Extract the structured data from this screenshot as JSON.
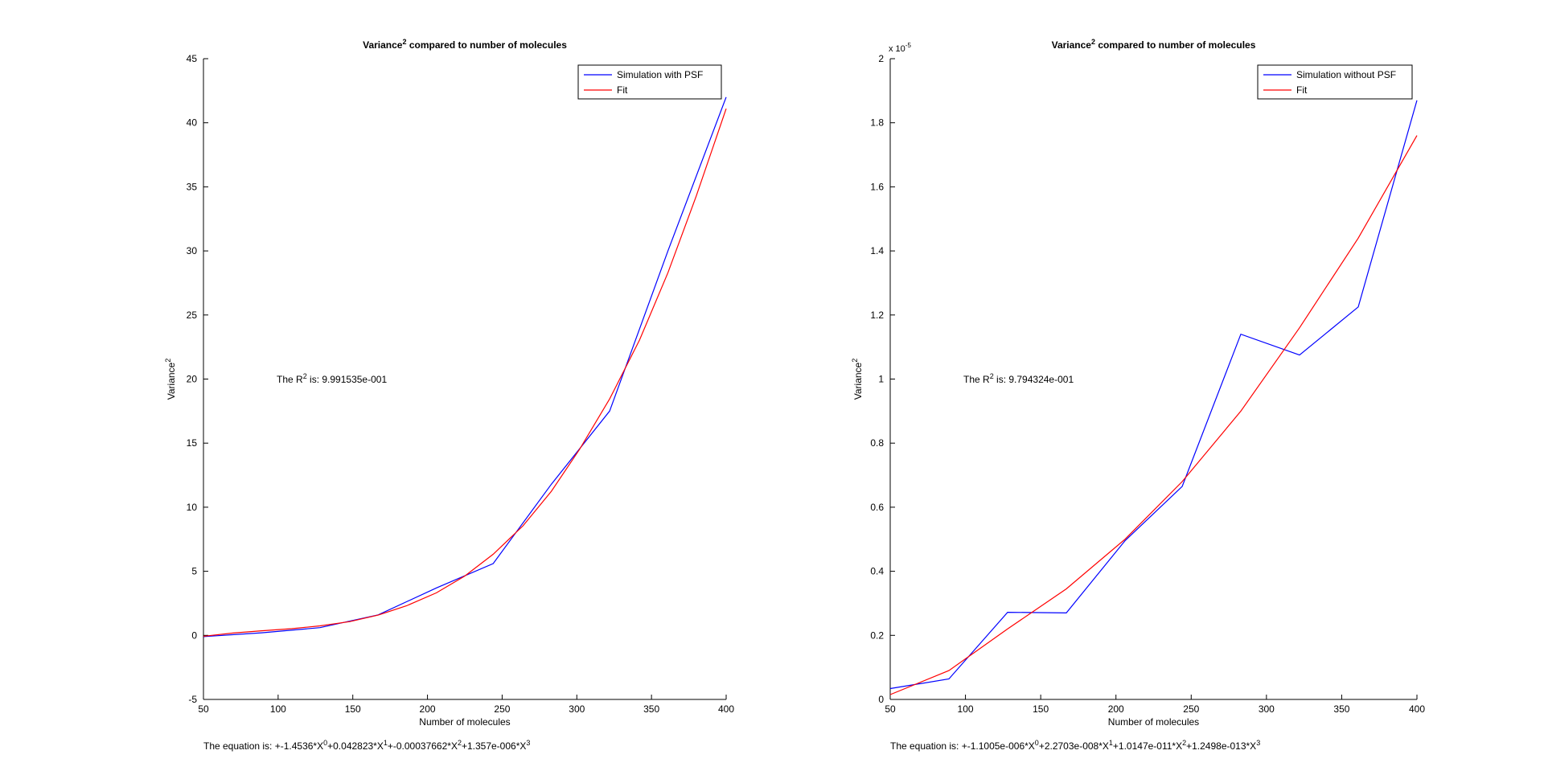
{
  "chart_data": [
    {
      "type": "line",
      "title": "Variance",
      "title_sup": "2",
      "title_rest": " compared to number of molecules",
      "xlabel": "Number of molecules",
      "ylabel": "Variance",
      "ylabel_sup": "2",
      "xlim": [
        50,
        400
      ],
      "ylim": [
        -5,
        45
      ],
      "xticks": [
        50,
        100,
        150,
        200,
        250,
        300,
        350,
        400
      ],
      "yticks": [
        -5,
        0,
        5,
        10,
        15,
        20,
        25,
        30,
        35,
        40,
        45
      ],
      "ytick_labels": [
        "-5",
        "0",
        "5",
        "10",
        "15",
        "20",
        "25",
        "30",
        "35",
        "40",
        "45"
      ],
      "exponent_label": "",
      "legend_position": "top-right",
      "grid": false,
      "series": [
        {
          "name": "Simulation with PSF",
          "color": "#0000ff",
          "x": [
            50,
            89,
            128,
            167,
            206,
            244,
            283,
            322,
            361,
            400
          ],
          "y": [
            -0.1,
            0.2,
            0.6,
            1.6,
            3.7,
            5.6,
            11.8,
            17.5,
            30.0,
            42.0
          ]
        },
        {
          "name": "Fit",
          "color": "#ff0000",
          "x": [
            50,
            70,
            89,
            109,
            128,
            148,
            167,
            186,
            206,
            225,
            244,
            264,
            283,
            302,
            322,
            342,
            361,
            380,
            400
          ],
          "y": [
            -0.07,
            0.18,
            0.36,
            0.52,
            0.74,
            1.07,
            1.58,
            2.31,
            3.32,
            4.63,
            6.33,
            8.55,
            11.25,
            14.55,
            18.45,
            23.05,
            28.3,
            34.3,
            41.1
          ]
        }
      ],
      "annotation": {
        "r2_prefix": "The R",
        "r2_sup": "2",
        "r2_value": " is: 9.991535e-001",
        "equation_parts": [
          "The equation is:  +-1.4536*X",
          "0",
          "+0.042823*X",
          "1",
          "+-0.00037662*X",
          "2",
          "+1.357e-006*X",
          "3"
        ]
      }
    },
    {
      "type": "line",
      "title": "Variance",
      "title_sup": "2",
      "title_rest": " compared to number of molecules",
      "xlabel": "Number of molecules",
      "ylabel": "Variance",
      "ylabel_sup": "2",
      "xlim": [
        50,
        400
      ],
      "ylim": [
        0,
        2e-05
      ],
      "xticks": [
        50,
        100,
        150,
        200,
        250,
        300,
        350,
        400
      ],
      "yticks": [
        0,
        2e-06,
        4e-06,
        6e-06,
        8e-06,
        1e-05,
        1.2e-05,
        1.4e-05,
        1.6e-05,
        1.8e-05,
        2e-05
      ],
      "ytick_labels": [
        "0",
        "0.2",
        "0.4",
        "0.6",
        "0.8",
        "1",
        "1.2",
        "1.4",
        "1.6",
        "1.8",
        "2"
      ],
      "exponent_label": "x 10",
      "exponent_sup": "-5",
      "legend_position": "top-right",
      "grid": false,
      "series": [
        {
          "name": "Simulation without PSF",
          "color": "#0000ff",
          "x": [
            50,
            89,
            128,
            167,
            206,
            244,
            283,
            322,
            361,
            400
          ],
          "y": [
            3.4e-07,
            6.4e-07,
            2.72e-06,
            2.7e-06,
            4.95e-06,
            6.65e-06,
            1.14e-05,
            1.075e-05,
            1.225e-05,
            1.87e-05
          ]
        },
        {
          "name": "Fit",
          "color": "#ff0000",
          "x": [
            50,
            89,
            128,
            167,
            206,
            244,
            283,
            322,
            361,
            400
          ],
          "y": [
            1.5e-07,
            9e-07,
            2.2e-06,
            3.45e-06,
            5e-06,
            6.8e-06,
            9e-06,
            1.16e-05,
            1.44e-05,
            1.76e-05
          ]
        }
      ],
      "annotation": {
        "r2_prefix": "The R",
        "r2_sup": "2",
        "r2_value": " is: 9.794324e-001",
        "equation_parts": [
          "The equation is:  +-1.1005e-006*X",
          "0",
          "+2.2703e-008*X",
          "1",
          "+1.0147e-011*X",
          "2",
          "+1.2498e-013*X",
          "3"
        ]
      }
    }
  ]
}
